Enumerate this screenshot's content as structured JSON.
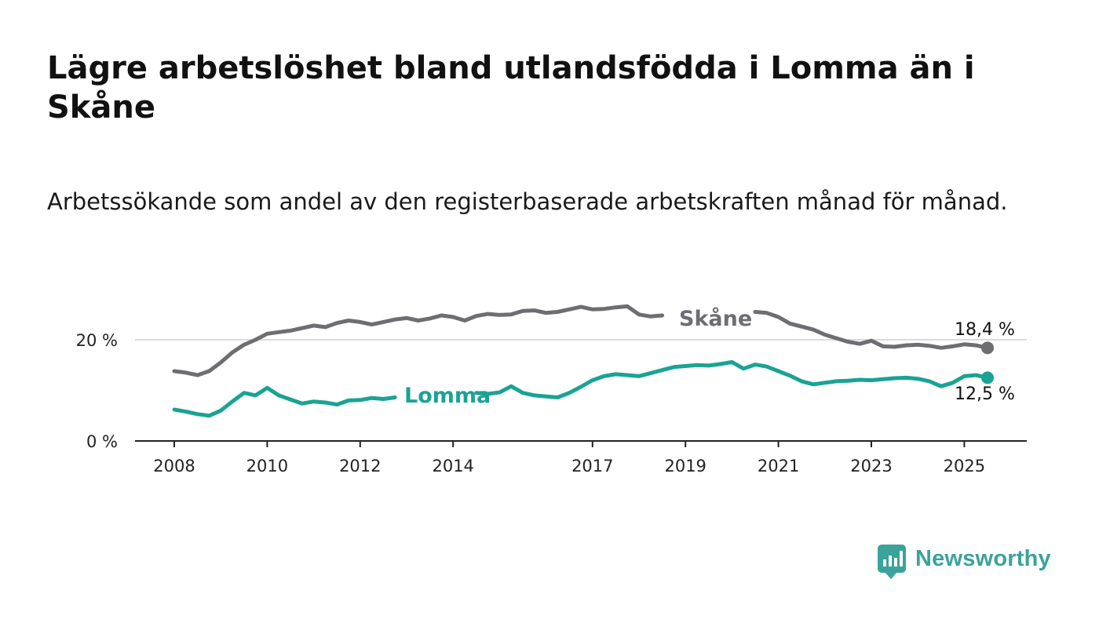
{
  "title": "Lägre arbetslöshet bland utlandsfödda i Lomma än i Skåne",
  "subtitle": "Arbetssökande som andel av den registerbaserade arbetskraften månad för månad.",
  "brand": {
    "name": "Newsworthy",
    "color": "#3aa39b"
  },
  "chart_data": {
    "type": "line",
    "x_tick_labels": [
      "2008",
      "2010",
      "2012",
      "2014",
      "2017",
      "2019",
      "2021",
      "2023",
      "2025"
    ],
    "y_tick_labels": [
      "0 %",
      "20 %"
    ],
    "ylim": [
      0,
      30
    ],
    "grid": "horizontal at 20 %",
    "series": [
      {
        "name": "Skåne",
        "color": "#6e6d72",
        "end_label": "18,4 %",
        "x": [
          2008.0,
          2008.25,
          2008.5,
          2008.75,
          2009.0,
          2009.25,
          2009.5,
          2009.75,
          2010.0,
          2010.25,
          2010.5,
          2010.75,
          2011.0,
          2011.25,
          2011.5,
          2011.75,
          2012.0,
          2012.25,
          2012.5,
          2012.75,
          2013.0,
          2013.25,
          2013.5,
          2013.75,
          2014.0,
          2014.25,
          2014.5,
          2014.75,
          2015.0,
          2015.25,
          2015.5,
          2015.75,
          2016.0,
          2016.25,
          2016.5,
          2016.75,
          2017.0,
          2017.25,
          2017.5,
          2017.75,
          2018.0,
          2018.25,
          2018.5,
          2018.75,
          2019.0,
          2019.25,
          2019.5,
          2019.75,
          2020.0,
          2020.25,
          2020.5,
          2020.75,
          2021.0,
          2021.25,
          2021.5,
          2021.75,
          2022.0,
          2022.25,
          2022.5,
          2022.75,
          2023.0,
          2023.25,
          2023.5,
          2023.75,
          2024.0,
          2024.25,
          2024.5,
          2024.75,
          2025.0,
          2025.25,
          2025.5
        ],
        "values": [
          13.8,
          13.5,
          13.0,
          13.8,
          15.5,
          17.5,
          19.0,
          20.0,
          21.2,
          21.5,
          21.8,
          22.3,
          22.8,
          22.5,
          23.3,
          23.8,
          23.5,
          23.0,
          23.5,
          24.0,
          24.3,
          23.8,
          24.2,
          24.8,
          24.5,
          23.8,
          24.7,
          25.1,
          24.9,
          25.0,
          25.7,
          25.8,
          25.3,
          25.5,
          26.0,
          26.5,
          26.0,
          26.1,
          26.4,
          26.6,
          25.0,
          24.6,
          24.8,
          null,
          null,
          null,
          null,
          null,
          null,
          null,
          25.5,
          25.3,
          24.5,
          23.2,
          22.6,
          22.0,
          21.0,
          20.3,
          19.6,
          19.2,
          19.8,
          18.7,
          18.6,
          18.9,
          19.0,
          18.8,
          18.4,
          18.7,
          19.1,
          18.9,
          18.4
        ]
      },
      {
        "name": "Lomma",
        "color": "#1aa394",
        "end_label": "12,5 %",
        "x": [
          2008.0,
          2008.25,
          2008.5,
          2008.75,
          2009.0,
          2009.25,
          2009.5,
          2009.75,
          2010.0,
          2010.25,
          2010.5,
          2010.75,
          2011.0,
          2011.25,
          2011.5,
          2011.75,
          2012.0,
          2012.25,
          2012.5,
          2012.75,
          2013.0,
          2013.25,
          2013.5,
          2013.75,
          2014.0,
          2014.25,
          2014.5,
          2014.75,
          2015.0,
          2015.25,
          2015.5,
          2015.75,
          2016.0,
          2016.25,
          2016.5,
          2016.75,
          2017.0,
          2017.25,
          2017.5,
          2017.75,
          2018.0,
          2018.25,
          2018.5,
          2018.75,
          2019.0,
          2019.25,
          2019.5,
          2019.75,
          2020.0,
          2020.25,
          2020.5,
          2020.75,
          2021.0,
          2021.25,
          2021.5,
          2021.75,
          2022.0,
          2022.25,
          2022.5,
          2022.75,
          2023.0,
          2023.25,
          2023.5,
          2023.75,
          2024.0,
          2024.25,
          2024.5,
          2024.75,
          2025.0,
          2025.25,
          2025.5
        ],
        "values": [
          6.2,
          5.8,
          5.3,
          5.0,
          6.0,
          7.8,
          9.5,
          9.0,
          10.5,
          9.0,
          8.2,
          7.4,
          7.8,
          7.6,
          7.2,
          8.0,
          8.1,
          8.5,
          8.3,
          8.6,
          null,
          null,
          null,
          null,
          null,
          null,
          9.5,
          9.3,
          9.6,
          10.8,
          9.5,
          9.0,
          8.8,
          8.6,
          9.5,
          10.7,
          12.0,
          12.8,
          13.2,
          13.0,
          12.8,
          13.4,
          14.0,
          14.6,
          14.8,
          15.0,
          14.9,
          15.2,
          15.6,
          14.3,
          15.1,
          14.7,
          13.8,
          12.9,
          11.8,
          11.2,
          11.5,
          11.8,
          11.9,
          12.1,
          12.0,
          12.2,
          12.4,
          12.5,
          12.3,
          11.8,
          10.8,
          11.5,
          12.8,
          13.0,
          12.5
        ]
      }
    ]
  }
}
